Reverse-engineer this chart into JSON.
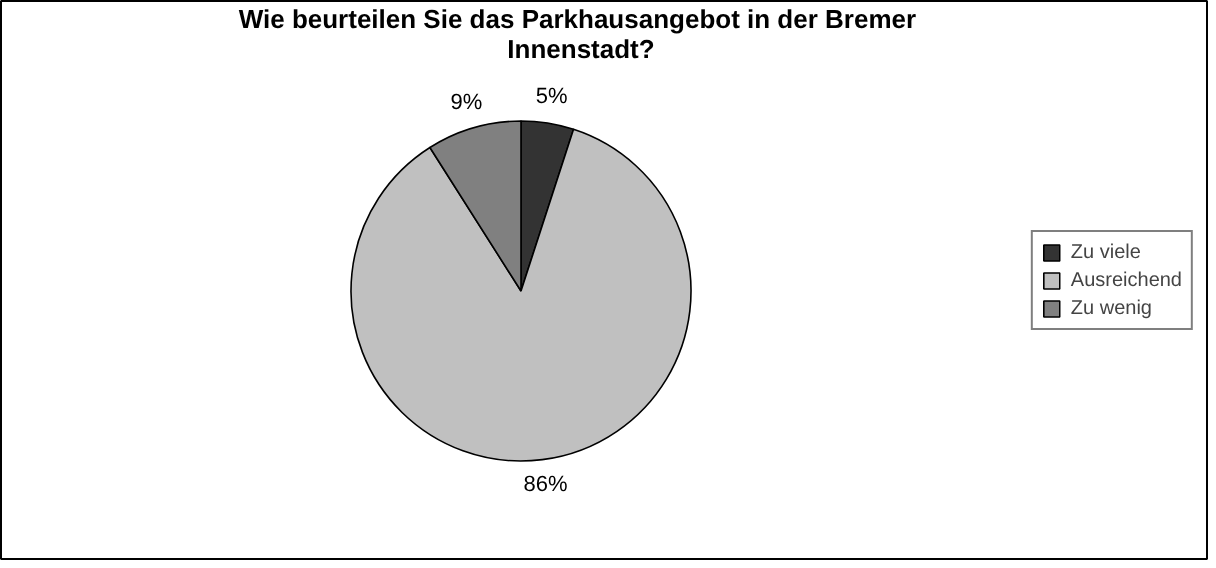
{
  "chart_data": {
    "type": "pie",
    "title": "Wie beurteilen Sie das Parkhausangebot  in der Bremer\nInnenstadt?",
    "categories": [
      "Zu viele",
      "Ausreichend",
      "Zu wenig"
    ],
    "values": [
      5,
      86,
      9
    ],
    "colors": [
      "#333333",
      "#c0c0c0",
      "#808080"
    ],
    "value_labels": [
      "5%",
      "86%",
      "9%"
    ],
    "legend": "right"
  }
}
